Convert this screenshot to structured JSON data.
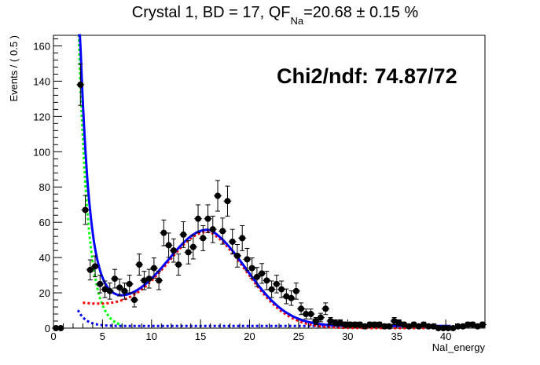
{
  "chart_data": {
    "type": "scatter",
    "title": {
      "prefix": "Crystal 1, BD = 17, QF",
      "subscript": "Na",
      "suffix": "=20.68 ± 0.15 %"
    },
    "annotation": "Chi2/ndf: 74.87/72",
    "xlabel": "NaI_energy",
    "ylabel": "Events / ( 0.5 )",
    "xlim": [
      0,
      44
    ],
    "ylim": [
      0,
      166
    ],
    "xticks": [
      0,
      5,
      10,
      15,
      20,
      25,
      30,
      35,
      40
    ],
    "yticks": [
      0,
      20,
      40,
      60,
      80,
      100,
      120,
      140,
      160
    ],
    "grid": false,
    "colors": {
      "data": "#000000",
      "total_fit": "#0000ff",
      "signal_component": "#ff0000",
      "exponential_component": "#00ff00",
      "background_component": "#0000ff"
    },
    "data_points": {
      "x": [
        0.25,
        0.75,
        2.75,
        3.25,
        3.75,
        4.25,
        4.75,
        5.25,
        5.75,
        6.25,
        6.75,
        7.25,
        7.75,
        8.25,
        8.75,
        9.25,
        9.75,
        10.25,
        10.75,
        11.25,
        11.75,
        12.25,
        12.75,
        13.25,
        13.75,
        14.25,
        14.75,
        15.25,
        15.75,
        16.25,
        16.75,
        17.25,
        17.75,
        18.25,
        18.75,
        19.25,
        19.75,
        20.25,
        20.75,
        21.25,
        21.75,
        22.25,
        22.75,
        23.25,
        23.75,
        24.25,
        24.75,
        25.25,
        25.75,
        26.25,
        26.75,
        27.25,
        27.75,
        28.25,
        28.75,
        29.25,
        29.75,
        30.25,
        30.75,
        31.25,
        31.75,
        32.25,
        32.75,
        33.25,
        33.75,
        34.25,
        34.75,
        35.25,
        35.75,
        36.25,
        36.75,
        37.25,
        37.75,
        38.25,
        38.75,
        39.25,
        39.75,
        40.25,
        40.75,
        41.25,
        41.75,
        42.25,
        42.75,
        43.25,
        43.75
      ],
      "y": [
        0,
        0,
        138,
        67,
        33,
        35,
        25,
        22,
        21,
        28,
        23,
        21,
        25,
        16,
        36,
        27,
        28,
        34,
        27,
        54,
        47,
        44,
        36,
        53,
        43,
        46,
        62,
        51,
        62,
        56,
        75,
        55,
        72,
        49,
        41,
        51,
        39,
        34,
        29,
        31,
        27,
        22,
        25,
        22,
        18,
        17,
        21,
        11,
        8,
        8,
        4,
        6,
        11,
        4,
        3,
        3,
        2,
        2,
        2,
        2,
        1,
        2,
        2,
        2,
        1,
        1,
        4,
        3,
        2,
        1,
        2,
        1,
        2,
        1,
        1,
        0,
        0,
        0,
        0,
        1,
        1,
        2,
        2,
        1,
        2
      ],
      "err": [
        0,
        0,
        11.7,
        8.2,
        5.7,
        5.9,
        5.0,
        4.7,
        4.6,
        5.3,
        4.8,
        4.6,
        5.0,
        4.0,
        6.0,
        5.2,
        5.3,
        5.8,
        5.2,
        7.3,
        6.9,
        6.6,
        6.0,
        7.3,
        6.6,
        6.8,
        7.9,
        7.1,
        7.9,
        7.5,
        8.7,
        7.4,
        8.5,
        7.0,
        6.4,
        7.1,
        6.2,
        5.8,
        5.4,
        5.6,
        5.2,
        4.7,
        5.0,
        4.7,
        4.2,
        4.1,
        4.6,
        3.3,
        2.8,
        2.8,
        2.0,
        2.4,
        3.3,
        2.0,
        1.7,
        1.7,
        1.4,
        1.4,
        1.4,
        1.4,
        1.0,
        1.4,
        1.4,
        1.4,
        1.0,
        1.0,
        2.0,
        1.7,
        1.4,
        1.0,
        1.4,
        1.0,
        1.4,
        1.0,
        1.0,
        0,
        0,
        0,
        0,
        1.0,
        1.0,
        1.4,
        1.4,
        1.0,
        1.4
      ]
    },
    "fit_model": {
      "exponential": {
        "amplitude": 2500,
        "slope": 1.05,
        "x_start": 2.5
      },
      "signal": {
        "amplitude": 48,
        "mean": 15.8,
        "sigma": 4.1
      },
      "signal_tail": {
        "amplitude": 14,
        "slope": 0.06,
        "x_start": 3,
        "x_end": 40.5
      },
      "background": {
        "amplitude": 9,
        "slope": 1.2,
        "floor": 1.2,
        "x_start": 2.5,
        "x_end": 40.5
      },
      "total": {
        "x_start": 2.5,
        "x_end": 40.5
      }
    }
  }
}
